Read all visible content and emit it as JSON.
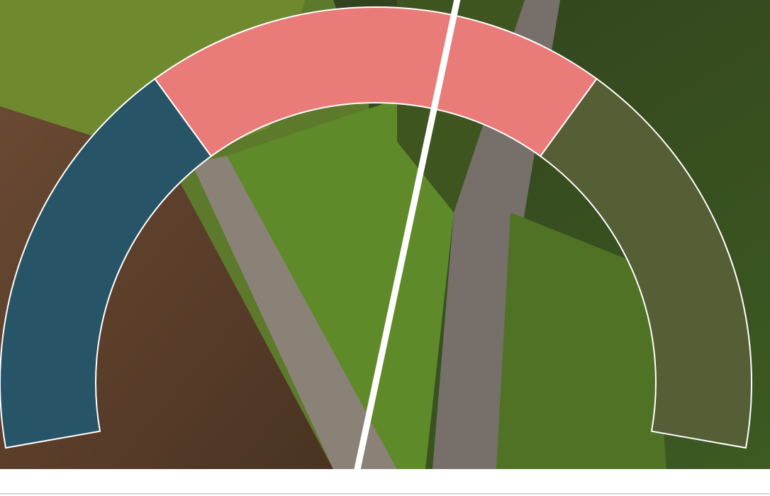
{
  "chart_data": {
    "type": "gauge",
    "min": 0,
    "max": 100,
    "series": [
      {
        "color": "#275466",
        "values": [
          32
        ]
      },
      {
        "color": "#e97b79",
        "values": [
          36
        ]
      },
      {
        "color": "#565e35",
        "values": [
          32
        ]
      }
    ],
    "needle": {
      "value": 56,
      "color": "#ffffff"
    }
  }
}
